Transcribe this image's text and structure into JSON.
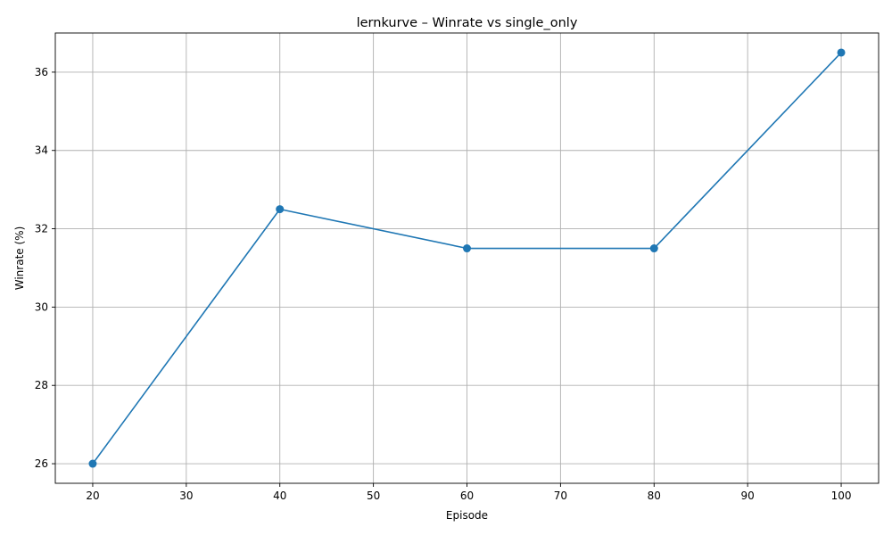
{
  "chart_data": {
    "type": "line",
    "title": "lernkurve – Winrate vs single_only",
    "xlabel": "Episode",
    "ylabel": "Winrate (%)",
    "x": [
      20,
      40,
      60,
      80,
      100
    ],
    "series": [
      {
        "values": [
          26.0,
          32.5,
          31.5,
          31.5,
          36.5
        ],
        "color": "#1f77b4",
        "marker": "circle"
      }
    ],
    "xlim": [
      16,
      104
    ],
    "ylim": [
      25.5,
      37.0
    ],
    "xticks": [
      "20",
      "30",
      "40",
      "50",
      "60",
      "70",
      "80",
      "90",
      "100"
    ],
    "yticks": [
      "26",
      "28",
      "30",
      "32",
      "34",
      "36"
    ],
    "grid": true,
    "legend": "none"
  }
}
